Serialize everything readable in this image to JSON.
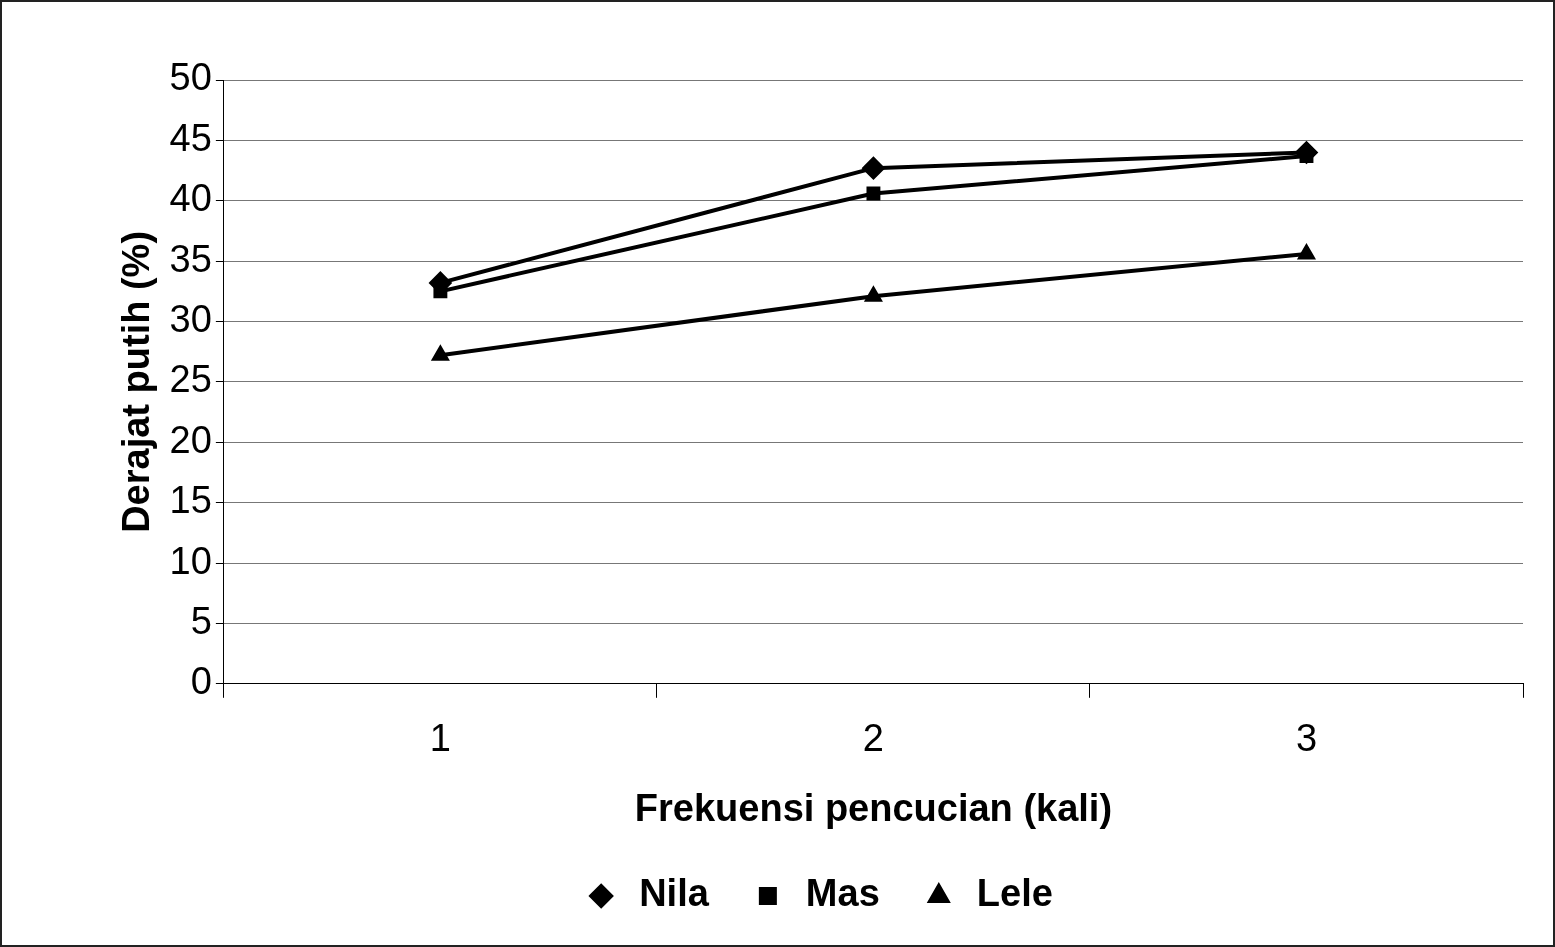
{
  "chart_data": {
    "type": "line",
    "xlabel": "Frekuensi pencucian (kali)",
    "ylabel": "Derajat putih (%)",
    "categories": [
      "1",
      "2",
      "3"
    ],
    "series": [
      {
        "name": "Nila",
        "color": "#000000",
        "marker": "diamond",
        "values": [
          33.2,
          42.7,
          44.0
        ]
      },
      {
        "name": "Mas",
        "color": "#000000",
        "marker": "square",
        "values": [
          32.5,
          40.6,
          43.7
        ]
      },
      {
        "name": "Lele",
        "color": "#000000",
        "marker": "triangle",
        "values": [
          27.2,
          32.1,
          35.6
        ]
      }
    ],
    "ylim": [
      0,
      50
    ],
    "yticks": [
      0,
      5,
      10,
      15,
      20,
      25,
      30,
      35,
      40,
      45,
      50
    ],
    "grid": "y",
    "legend": "bottom",
    "line_style": "solid"
  }
}
